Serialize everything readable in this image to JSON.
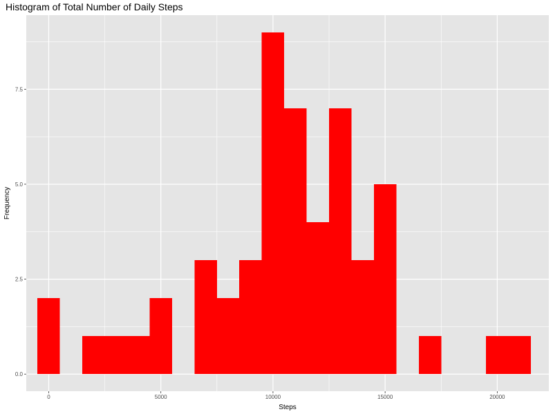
{
  "chart_data": {
    "type": "bar",
    "title": "Histogram of Total Number of Daily Steps",
    "xlabel": "Steps",
    "ylabel": "Frequency",
    "xlim": [
      -1000,
      22300
    ],
    "ylim": [
      -0.45,
      9.45
    ],
    "binwidth": 1000,
    "x_ticks": [
      0,
      5000,
      10000,
      15000,
      20000
    ],
    "x_tick_labels": [
      "0",
      "5000",
      "10000",
      "15000",
      "20000"
    ],
    "y_ticks": [
      0,
      2.5,
      5,
      7.5
    ],
    "y_tick_labels": [
      "0.0",
      "2.5",
      "5.0",
      "7.5"
    ],
    "bins": [
      {
        "x": 0,
        "count": 2
      },
      {
        "x": 1000,
        "count": 0
      },
      {
        "x": 2000,
        "count": 1
      },
      {
        "x": 3000,
        "count": 1
      },
      {
        "x": 4000,
        "count": 1
      },
      {
        "x": 5000,
        "count": 2
      },
      {
        "x": 6000,
        "count": 0
      },
      {
        "x": 7000,
        "count": 3
      },
      {
        "x": 8000,
        "count": 2
      },
      {
        "x": 9000,
        "count": 3
      },
      {
        "x": 10000,
        "count": 9
      },
      {
        "x": 11000,
        "count": 7
      },
      {
        "x": 12000,
        "count": 4
      },
      {
        "x": 13000,
        "count": 7
      },
      {
        "x": 14000,
        "count": 3
      },
      {
        "x": 15000,
        "count": 5
      },
      {
        "x": 16000,
        "count": 0
      },
      {
        "x": 17000,
        "count": 1
      },
      {
        "x": 18000,
        "count": 0
      },
      {
        "x": 19000,
        "count": 0
      },
      {
        "x": 20000,
        "count": 1
      },
      {
        "x": 21000,
        "count": 1
      }
    ],
    "bar_color": "#ff0000",
    "panel_color": "#e5e5e5",
    "grid_color": "#ffffff",
    "grid": true
  }
}
